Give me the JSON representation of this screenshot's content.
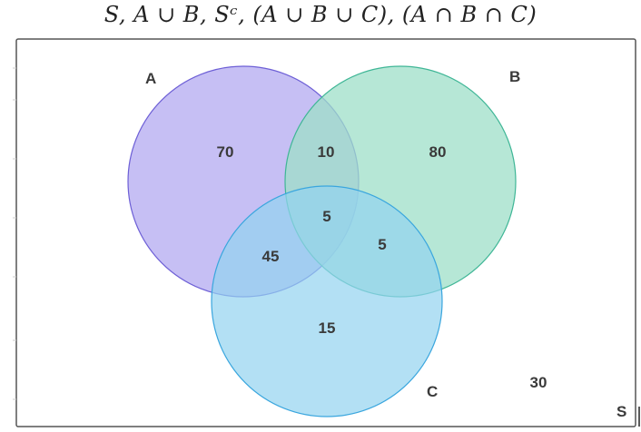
{
  "title": "S, A ∪ B, Sᶜ, (A ∪ B ∪ C), (A ∩ B ∩ C)",
  "sets": {
    "A": {
      "label": "A",
      "color": "#b3a9f0",
      "stroke": "#6d5fd6"
    },
    "B": {
      "label": "B",
      "color": "#9edfc8",
      "stroke": "#3fb696"
    },
    "C": {
      "label": "C",
      "color": "#93d3f0",
      "stroke": "#3aa6de"
    }
  },
  "universe_label": "S",
  "regions": {
    "a_only": "70",
    "ab_only": "10",
    "b_only": "80",
    "abc": "5",
    "ac_only": "45",
    "bc_only": "5",
    "c_only": "15",
    "outside": "30"
  }
}
